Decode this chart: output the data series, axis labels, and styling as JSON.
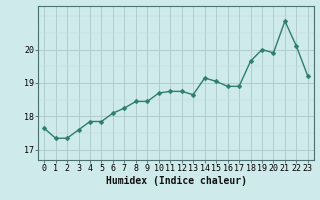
{
  "x": [
    0,
    1,
    2,
    3,
    4,
    5,
    6,
    7,
    8,
    9,
    10,
    11,
    12,
    13,
    14,
    15,
    16,
    17,
    18,
    19,
    20,
    21,
    22,
    23
  ],
  "y": [
    17.65,
    17.35,
    17.35,
    17.6,
    17.85,
    17.85,
    18.1,
    18.25,
    18.45,
    18.45,
    18.7,
    18.75,
    18.75,
    18.65,
    19.15,
    19.05,
    18.9,
    18.9,
    19.65,
    20.0,
    19.9,
    20.85,
    20.1,
    19.2
  ],
  "line_color": "#2e7d6e",
  "marker": "D",
  "marker_size": 2.5,
  "bg_color": "#ceeaea",
  "grid_color_major": "#adc8c8",
  "grid_color_minor": "#bedad8",
  "xlabel": "Humidex (Indice chaleur)",
  "xlabel_fontsize": 7,
  "yticks": [
    17,
    18,
    19,
    20
  ],
  "xticks": [
    0,
    1,
    2,
    3,
    4,
    5,
    6,
    7,
    8,
    9,
    10,
    11,
    12,
    13,
    14,
    15,
    16,
    17,
    18,
    19,
    20,
    21,
    22,
    23
  ],
  "xlim": [
    -0.5,
    23.5
  ],
  "ylim": [
    16.7,
    21.3
  ],
  "tick_fontsize": 6,
  "line_width": 1.0
}
